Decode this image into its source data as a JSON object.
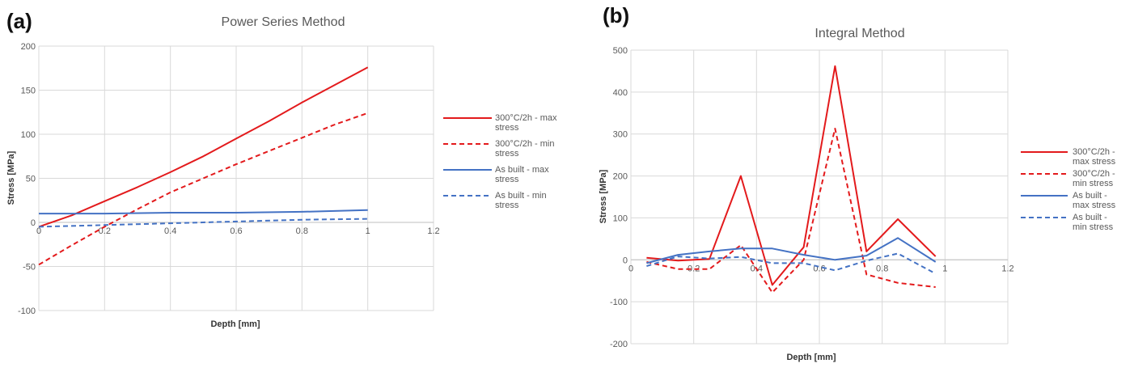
{
  "chart_data": [
    {
      "type": "line",
      "panel_label": "(a)",
      "title": "Power Series Method",
      "xlabel": "Depth [mm]",
      "ylabel": "Stress [MPa]",
      "xlim": [
        0,
        1.2
      ],
      "ylim": [
        -100,
        200
      ],
      "xticks": [
        "0",
        "0.2",
        "0.4",
        "0.6",
        "0.8",
        "1",
        "1.2"
      ],
      "xtick_values": [
        0,
        0.2,
        0.4,
        0.6,
        0.8,
        1,
        1.2
      ],
      "yticks": [
        "-100",
        "-50",
        "0",
        "50",
        "100",
        "150",
        "200"
      ],
      "ytick_values": [
        -100,
        -50,
        0,
        50,
        100,
        150,
        200
      ],
      "grid": true,
      "legend_position": "right",
      "series": [
        {
          "name": "300°C/2h - max stress",
          "legend_lines": [
            "300°C/2h - max",
            "stress"
          ],
          "color": "#e31a1c",
          "dash": "solid",
          "x": [
            0,
            0.1,
            0.2,
            0.3,
            0.4,
            0.5,
            0.6,
            0.7,
            0.8,
            0.9,
            1.0
          ],
          "values": [
            -5,
            8,
            24,
            40,
            57,
            75,
            95,
            115,
            136,
            156,
            176
          ]
        },
        {
          "name": "300°C/2h - min stress",
          "legend_lines": [
            "300°C/2h - min",
            "stress"
          ],
          "color": "#e31a1c",
          "dash": "dashed",
          "x": [
            0,
            0.1,
            0.2,
            0.3,
            0.4,
            0.5,
            0.6,
            0.7,
            0.8,
            0.9,
            1.0
          ],
          "values": [
            -48,
            -26,
            -5,
            15,
            34,
            50,
            66,
            81,
            96,
            111,
            124
          ]
        },
        {
          "name": "As built - max stress",
          "legend_lines": [
            "As built - max",
            "stress"
          ],
          "color": "#4472c4",
          "dash": "solid",
          "x": [
            0,
            0.2,
            0.4,
            0.6,
            0.8,
            1.0
          ],
          "values": [
            10,
            10,
            11,
            11,
            12,
            14
          ]
        },
        {
          "name": "As built - min stress",
          "legend_lines": [
            "As built - min",
            "stress"
          ],
          "color": "#4472c4",
          "dash": "dashed",
          "x": [
            0,
            0.2,
            0.4,
            0.6,
            0.8,
            1.0
          ],
          "values": [
            -5,
            -3,
            -1,
            1,
            3,
            4
          ]
        }
      ]
    },
    {
      "type": "line",
      "panel_label": "(b)",
      "title": "Integral Method",
      "xlabel": "Depth [mm]",
      "ylabel": "Stress [MPa]",
      "xlim": [
        0,
        1.2
      ],
      "ylim": [
        -200,
        500
      ],
      "xticks": [
        "0",
        "0.2",
        "0.4",
        "0.6",
        "0.8",
        "1",
        "1.2"
      ],
      "xtick_values": [
        0,
        0.2,
        0.4,
        0.6,
        0.8,
        1,
        1.2
      ],
      "yticks": [
        "-200",
        "-100",
        "0",
        "100",
        "200",
        "300",
        "400",
        "500"
      ],
      "ytick_values": [
        -200,
        -100,
        0,
        100,
        200,
        300,
        400,
        500
      ],
      "grid": true,
      "legend_position": "right",
      "series": [
        {
          "name": "300°C/2h - max stress",
          "legend_lines": [
            "300°C/2h -",
            "max stress"
          ],
          "color": "#e31a1c",
          "dash": "solid",
          "x": [
            0.05,
            0.15,
            0.25,
            0.35,
            0.45,
            0.55,
            0.65,
            0.75,
            0.85,
            0.97
          ],
          "values": [
            5,
            -2,
            2,
            200,
            -60,
            30,
            462,
            20,
            97,
            8
          ]
        },
        {
          "name": "300°C/2h - min stress",
          "legend_lines": [
            "300°C/2h -",
            "min stress"
          ],
          "color": "#e31a1c",
          "dash": "dashed",
          "x": [
            0.05,
            0.15,
            0.25,
            0.35,
            0.45,
            0.55,
            0.65,
            0.75,
            0.85,
            0.97
          ],
          "values": [
            -5,
            -22,
            -22,
            35,
            -78,
            0,
            313,
            -35,
            -55,
            -65
          ]
        },
        {
          "name": "As built - max stress",
          "legend_lines": [
            "As built -",
            "max stress"
          ],
          "color": "#4472c4",
          "dash": "solid",
          "x": [
            0.05,
            0.15,
            0.25,
            0.35,
            0.45,
            0.55,
            0.65,
            0.75,
            0.85,
            0.97
          ],
          "values": [
            -8,
            12,
            20,
            27,
            27,
            12,
            0,
            10,
            52,
            -5
          ]
        },
        {
          "name": "As built - min stress",
          "legend_lines": [
            "As built -",
            "min stress"
          ],
          "color": "#4472c4",
          "dash": "dashed",
          "x": [
            0.05,
            0.15,
            0.25,
            0.35,
            0.45,
            0.55,
            0.65,
            0.75,
            0.85,
            0.97
          ],
          "values": [
            -15,
            8,
            3,
            7,
            -8,
            -8,
            -25,
            -2,
            15,
            -33
          ]
        }
      ]
    }
  ]
}
